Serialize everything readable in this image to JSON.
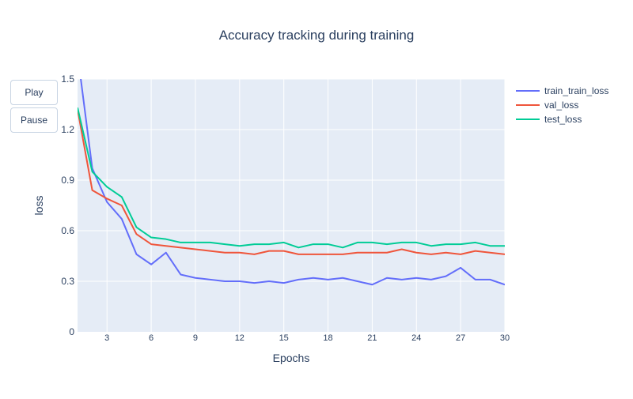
{
  "controls": {
    "play_label": "Play",
    "pause_label": "Pause"
  },
  "chart_data": {
    "type": "line",
    "title": "Accuracy tracking during training",
    "xlabel": "Epochs",
    "ylabel": "loss",
    "xlim": [
      1,
      30
    ],
    "ylim": [
      0,
      1.5
    ],
    "xticks": [
      3,
      6,
      9,
      12,
      15,
      18,
      21,
      24,
      27,
      30
    ],
    "yticks": [
      0,
      0.3,
      0.6,
      0.9,
      1.2,
      1.5
    ],
    "ytick_labels": [
      "0",
      "0.3",
      "0.6",
      "0.9",
      "1.2",
      "1.5"
    ],
    "grid": true,
    "legend_position": "top-right",
    "x": [
      1,
      2,
      3,
      4,
      5,
      6,
      7,
      8,
      9,
      10,
      11,
      12,
      13,
      14,
      15,
      16,
      17,
      18,
      19,
      20,
      21,
      22,
      23,
      24,
      25,
      26,
      27,
      28,
      29,
      30
    ],
    "series": [
      {
        "name": "train_train_loss",
        "color": "#636efa",
        "values": [
          1.65,
          0.97,
          0.77,
          0.67,
          0.46,
          0.4,
          0.47,
          0.34,
          0.32,
          0.31,
          0.3,
          0.3,
          0.29,
          0.3,
          0.29,
          0.31,
          0.32,
          0.31,
          0.32,
          0.3,
          0.28,
          0.32,
          0.31,
          0.32,
          0.31,
          0.33,
          0.38,
          0.31,
          0.31,
          0.28
        ]
      },
      {
        "name": "val_loss",
        "color": "#ef553b",
        "values": [
          1.32,
          0.84,
          0.79,
          0.75,
          0.58,
          0.52,
          0.51,
          0.5,
          0.49,
          0.48,
          0.47,
          0.47,
          0.46,
          0.48,
          0.48,
          0.46,
          0.46,
          0.46,
          0.46,
          0.47,
          0.47,
          0.47,
          0.49,
          0.47,
          0.46,
          0.47,
          0.46,
          0.48,
          0.47,
          0.46
        ]
      },
      {
        "name": "test_loss",
        "color": "#00cc96",
        "values": [
          1.33,
          0.95,
          0.86,
          0.8,
          0.62,
          0.56,
          0.55,
          0.53,
          0.53,
          0.53,
          0.52,
          0.51,
          0.52,
          0.52,
          0.53,
          0.5,
          0.52,
          0.52,
          0.5,
          0.53,
          0.53,
          0.52,
          0.53,
          0.53,
          0.51,
          0.52,
          0.52,
          0.53,
          0.51,
          0.51
        ]
      }
    ]
  }
}
